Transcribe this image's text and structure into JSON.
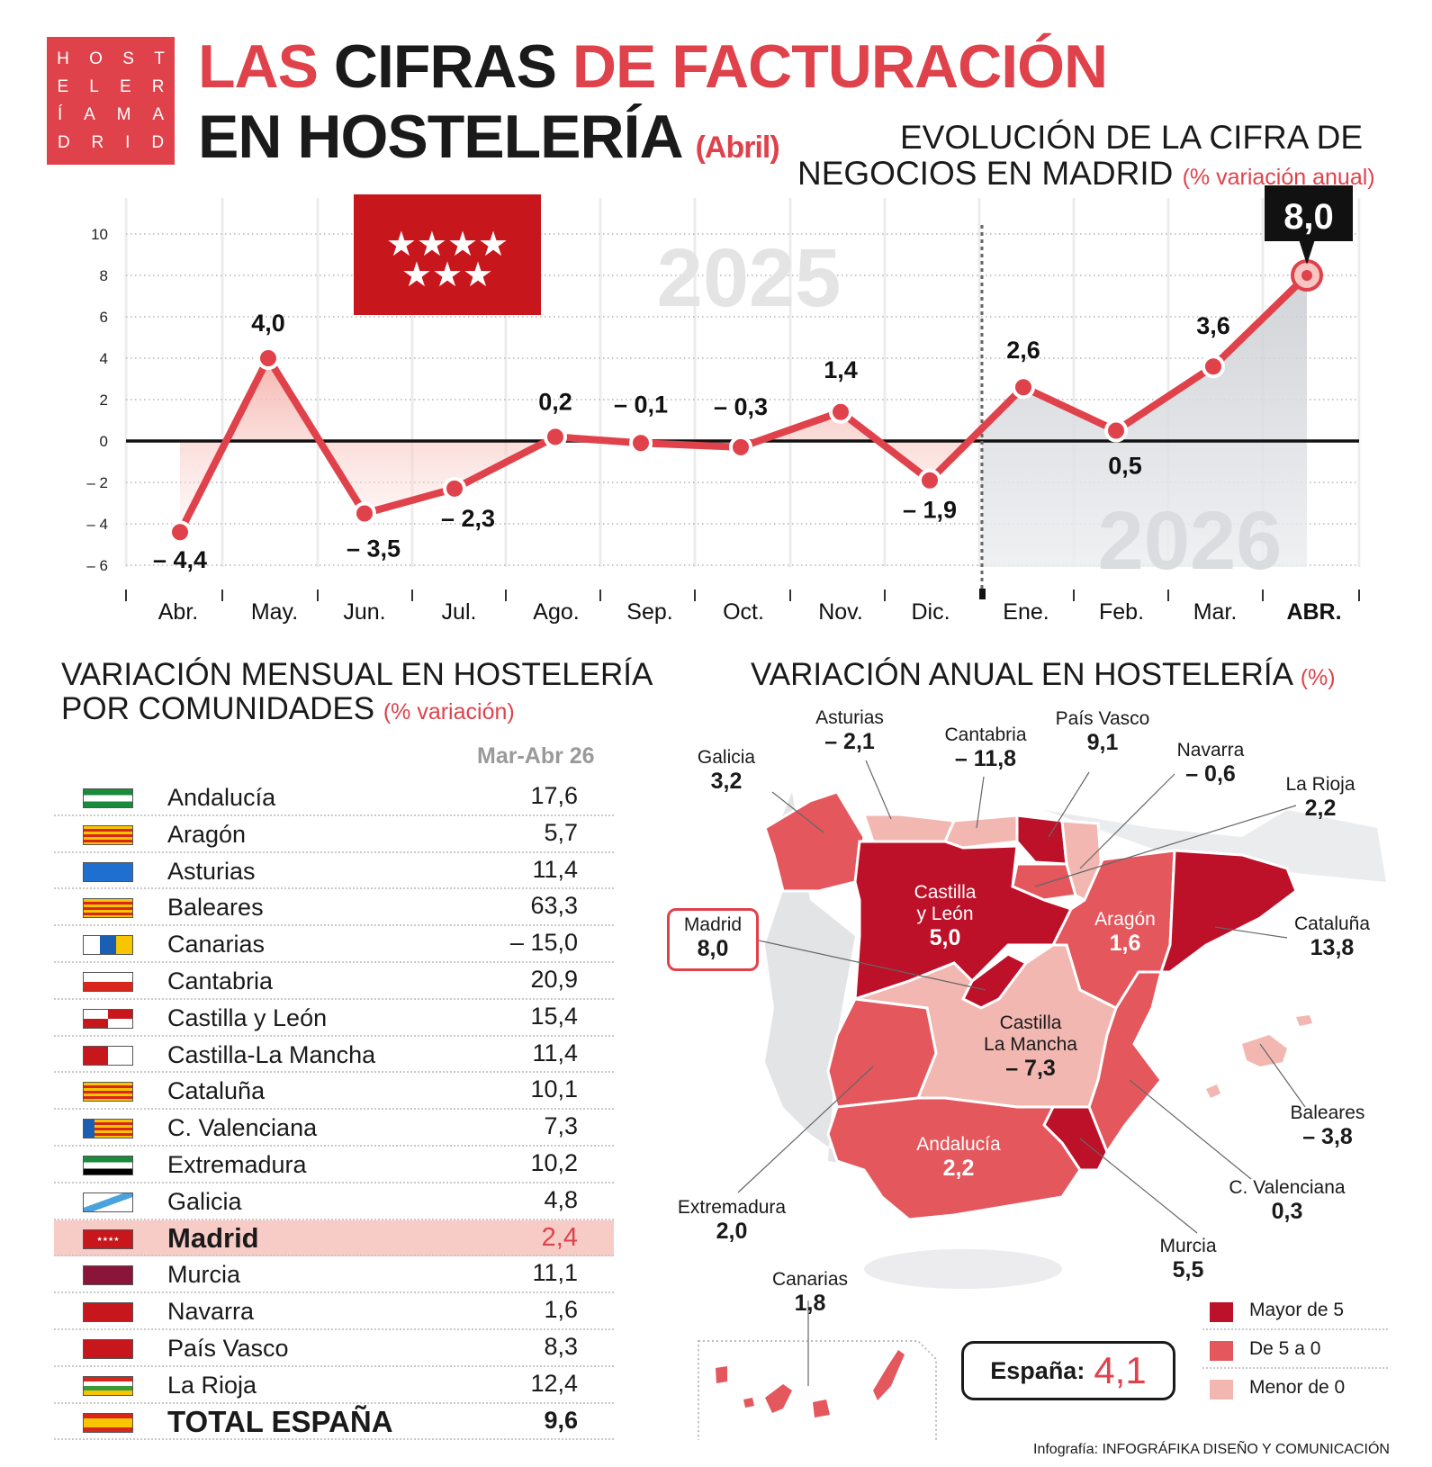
{
  "logo": {
    "rows": [
      [
        "H",
        "O",
        "S",
        "T"
      ],
      [
        "E",
        "L",
        "E",
        "R"
      ],
      [
        "Í",
        "A",
        "M",
        "A"
      ],
      [
        "D",
        "R",
        "I",
        "D"
      ]
    ]
  },
  "title": {
    "part1a": "LAS",
    "part1b": " CIFRAS ",
    "part1c": "DE FACTURACIÓN",
    "part2": "EN HOSTELERÍA",
    "part2_sub": "(Abril)"
  },
  "evolution_title": {
    "line1": "EVOLUCIÓN DE LA CIFRA DE",
    "line2": "NEGOCIOS EN MADRID",
    "unit": "(% variación anual)"
  },
  "colors": {
    "accent": "#e0424b",
    "dark_red": "#bd1029",
    "mid_red": "#e3575d",
    "light_red": "#f2b7b1",
    "flag_red": "#c8161d"
  },
  "chart_data": {
    "type": "line",
    "title": "EVOLUCIÓN DE LA CIFRA DE NEGOCIOS EN MADRID",
    "ylabel": "(% variación anual)",
    "categories": [
      "Abr.",
      "May.",
      "Jun.",
      "Jul.",
      "Ago.",
      "Sep.",
      "Oct.",
      "Nov.",
      "Dic.",
      "Ene.",
      "Feb.",
      "Mar.",
      "ABR."
    ],
    "values": [
      -4.4,
      4.0,
      -3.5,
      -2.3,
      0.2,
      -0.1,
      -0.3,
      1.4,
      -1.9,
      2.6,
      0.5,
      3.6,
      8.0
    ],
    "value_labels": [
      "– 4,4",
      "4,0",
      "– 3,5",
      "– 2,3",
      "0,2",
      "– 0,1",
      "– 0,3",
      "1,4",
      "– 1,9",
      "2,6",
      "0,5",
      "3,6",
      "8,0"
    ],
    "ylim": [
      -6,
      10
    ],
    "yticks": [
      -6,
      -4,
      -2,
      0,
      2,
      4,
      6,
      8,
      10
    ],
    "ytick_labels": [
      "– 6",
      "– 4",
      "– 2",
      "0",
      "2",
      "4",
      "6",
      "8",
      "10"
    ],
    "year_labels": [
      "2025",
      "2026"
    ],
    "highlight": "8,0",
    "grid": true
  },
  "table": {
    "title1": "VARIACIÓN MENSUAL EN HOSTELERÍA",
    "title2": "POR COMUNIDADES",
    "unit": "(% variación)",
    "column_header": "Mar-Abr 26",
    "rows": [
      {
        "name": "Andalucía",
        "value": "17,6"
      },
      {
        "name": "Aragón",
        "value": "5,7"
      },
      {
        "name": "Asturias",
        "value": "11,4"
      },
      {
        "name": "Baleares",
        "value": "63,3"
      },
      {
        "name": "Canarias",
        "value": "– 15,0"
      },
      {
        "name": "Cantabria",
        "value": "20,9"
      },
      {
        "name": "Castilla y León",
        "value": "15,4"
      },
      {
        "name": "Castilla-La Mancha",
        "value": "11,4"
      },
      {
        "name": "Cataluña",
        "value": "10,1"
      },
      {
        "name": "C. Valenciana",
        "value": "7,3"
      },
      {
        "name": "Extremadura",
        "value": "10,2"
      },
      {
        "name": "Galicia",
        "value": "4,8"
      },
      {
        "name": "Madrid",
        "value": "2,4"
      },
      {
        "name": "Murcia",
        "value": "11,1"
      },
      {
        "name": "Navarra",
        "value": "1,6"
      },
      {
        "name": "País Vasco",
        "value": "8,3"
      },
      {
        "name": "La Rioja",
        "value": "12,4"
      },
      {
        "name": "TOTAL ESPAÑA",
        "value": "9,6"
      }
    ]
  },
  "map": {
    "title": "VARIACIÓN ANUAL EN HOSTELERÍA",
    "unit": "(%)",
    "regions": {
      "asturias": {
        "name": "Asturias",
        "value": "– 2,1"
      },
      "cantabria": {
        "name": "Cantabria",
        "value": "– 11,8"
      },
      "pais_vasco": {
        "name": "País Vasco",
        "value": "9,1"
      },
      "galicia": {
        "name": "Galicia",
        "value": "3,2"
      },
      "navarra": {
        "name": "Navarra",
        "value": "– 0,6"
      },
      "la_rioja": {
        "name": "La Rioja",
        "value": "2,2"
      },
      "castilla_leon": {
        "name": "Castilla\ny León",
        "value": "5,0"
      },
      "aragon": {
        "name": "Aragón",
        "value": "1,6"
      },
      "madrid": {
        "name": "Madrid",
        "value": "8,0"
      },
      "cataluna": {
        "name": "Cataluña",
        "value": "13,8"
      },
      "castilla_la_mancha": {
        "name": "Castilla\nLa Mancha",
        "value": "– 7,3"
      },
      "baleares": {
        "name": "Baleares",
        "value": "– 3,8"
      },
      "andalucia": {
        "name": "Andalucía",
        "value": "2,2"
      },
      "c_valenciana": {
        "name": "C. Valenciana",
        "value": "0,3"
      },
      "extremadura": {
        "name": "Extremadura",
        "value": "2,0"
      },
      "murcia": {
        "name": "Murcia",
        "value": "5,5"
      },
      "canarias": {
        "name": "Canarias",
        "value": "1,8"
      }
    },
    "espana": {
      "label": "España:",
      "value": "4,1"
    },
    "legend": [
      "Mayor de 5",
      "De 5 a 0",
      "Menor de 0"
    ]
  },
  "credit": {
    "prefix": "Infografía: ",
    "name": "INFOGRÁFIKA DISEÑO Y COMUNICACIÓN"
  }
}
